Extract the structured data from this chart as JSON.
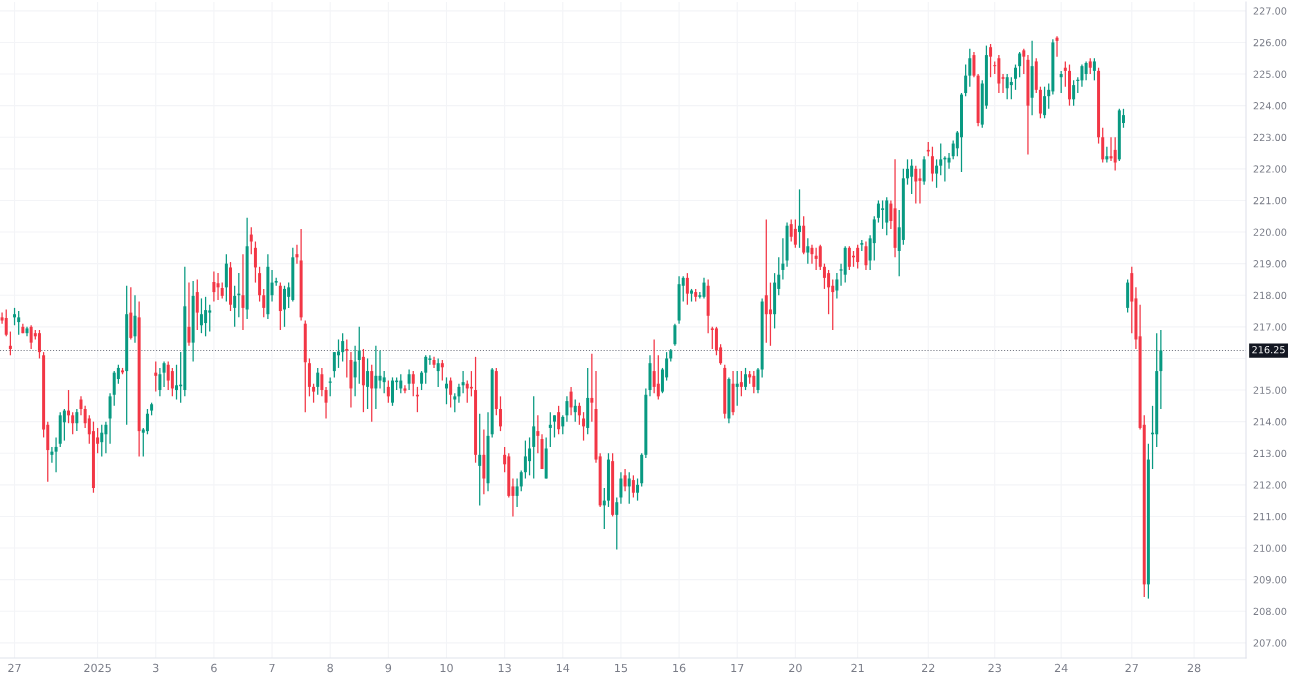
{
  "chart_data": {
    "type": "candlestick",
    "categories": [
      null,
      null,
      null,
      "27",
      null,
      null,
      null,
      null,
      null,
      null,
      null,
      null,
      null,
      null,
      null,
      null,
      null,
      null,
      null,
      null,
      null,
      null,
      null,
      "2025",
      null,
      null,
      null,
      null,
      null,
      null,
      null,
      null,
      null,
      null,
      null,
      null,
      null,
      "3",
      null,
      null,
      null,
      null,
      null,
      null,
      null,
      null,
      null,
      null,
      null,
      null,
      null,
      "6",
      null,
      null,
      null,
      null,
      null,
      null,
      null,
      null,
      null,
      null,
      null,
      null,
      null,
      "7",
      null,
      null,
      null,
      null,
      null,
      null,
      null,
      null,
      null,
      null,
      null,
      null,
      null,
      "8",
      null,
      null,
      null,
      null,
      null,
      null,
      null,
      null,
      null,
      null,
      null,
      null,
      null,
      "9",
      null,
      null,
      null,
      null,
      null,
      null,
      null,
      null,
      null,
      null,
      null,
      null,
      null,
      "10",
      null,
      null,
      null,
      null,
      null,
      null,
      null,
      null,
      null,
      null,
      null,
      null,
      null,
      "13",
      null,
      null,
      null,
      null,
      null,
      null,
      null,
      null,
      null,
      null,
      null,
      null,
      null,
      "14",
      null,
      null,
      null,
      null,
      null,
      null,
      null,
      null,
      null,
      null,
      null,
      null,
      null,
      "15",
      null,
      null,
      null,
      null,
      null,
      null,
      null,
      null,
      null,
      null,
      null,
      null,
      null,
      "16",
      null,
      null,
      null,
      null,
      null,
      null,
      null,
      null,
      null,
      null,
      null,
      null,
      null,
      "17",
      null,
      null,
      null,
      null,
      null,
      null,
      null,
      null,
      null,
      null,
      null,
      null,
      null,
      "20",
      null,
      null,
      null,
      null,
      null,
      null,
      null,
      null,
      null,
      null,
      null,
      null,
      null,
      null,
      "21",
      null,
      null,
      null,
      null,
      null,
      null,
      null,
      null,
      null,
      null,
      null,
      null,
      null,
      null,
      null,
      null,
      "22",
      null,
      null,
      null,
      null,
      null,
      null,
      null,
      null,
      null,
      null,
      null,
      null,
      null,
      null,
      null,
      "23",
      null,
      null,
      null,
      null,
      null,
      null,
      null,
      null,
      null,
      null,
      null,
      null,
      null,
      null,
      null,
      "24",
      null,
      null,
      null,
      null,
      null,
      null,
      null,
      null,
      null,
      null,
      null,
      null,
      null,
      null,
      null,
      null,
      "27",
      null,
      null,
      null,
      null,
      null,
      null,
      null,
      null,
      null,
      null,
      null,
      null,
      null,
      null,
      "28",
      null,
      null,
      null,
      null,
      null,
      null,
      null,
      null,
      null,
      null,
      null,
      null
    ],
    "ohlc": [
      [
        217.3,
        217.45,
        217.1,
        217.2
      ],
      [
        217.28,
        217.55,
        216.7,
        216.75
      ],
      [
        216.4,
        216.85,
        216.1,
        216.3
      ],
      [
        217.3,
        217.6,
        217.05,
        217.4
      ],
      [
        217.15,
        217.5,
        216.75,
        217.3
      ],
      [
        217.0,
        217.1,
        216.8,
        216.8
      ],
      [
        216.8,
        217.0,
        216.7,
        216.95
      ],
      [
        217.0,
        217.05,
        216.3,
        216.5
      ],
      [
        216.8,
        216.9,
        216.6,
        216.7
      ],
      [
        216.8,
        216.9,
        216.0,
        216.2
      ],
      [
        216.1,
        216.2,
        213.5,
        213.75
      ],
      [
        213.9,
        214.0,
        212.1,
        213.1
      ],
      [
        212.95,
        213.2,
        212.7,
        213.05
      ],
      [
        213.05,
        213.5,
        212.4,
        213.2
      ],
      [
        213.3,
        214.3,
        213.2,
        214.2
      ],
      [
        213.98,
        214.4,
        213.4,
        214.35
      ],
      [
        214.35,
        215.0,
        213.95,
        214.2
      ],
      [
        214.2,
        214.3,
        213.6,
        213.95
      ],
      [
        213.95,
        214.4,
        213.7,
        214.3
      ],
      [
        214.7,
        214.8,
        214.2,
        214.4
      ],
      [
        214.4,
        214.5,
        213.8,
        213.95
      ],
      [
        214.1,
        214.2,
        213.3,
        213.6
      ],
      [
        213.7,
        214.0,
        211.75,
        211.9
      ],
      [
        213.5,
        213.8,
        213.0,
        213.3
      ],
      [
        213.35,
        213.9,
        212.9,
        213.65
      ],
      [
        213.6,
        214.0,
        213.0,
        213.9
      ],
      [
        214.1,
        214.9,
        213.3,
        214.8
      ],
      [
        214.85,
        215.6,
        214.5,
        215.55
      ],
      [
        215.35,
        215.8,
        215.2,
        215.7
      ],
      [
        215.62,
        215.7,
        215.5,
        215.56
      ],
      [
        215.6,
        218.3,
        213.9,
        217.4
      ],
      [
        217.45,
        218.25,
        216.6,
        216.65
      ],
      [
        216.7,
        218.0,
        216.5,
        217.35
      ],
      [
        217.3,
        217.8,
        212.9,
        213.7
      ],
      [
        213.65,
        213.8,
        212.9,
        213.75
      ],
      [
        213.7,
        214.4,
        213.6,
        214.25
      ],
      [
        214.35,
        214.6,
        214.2,
        214.55
      ],
      [
        215.55,
        215.9,
        214.95,
        215.45
      ],
      [
        215.0,
        215.7,
        214.8,
        215.5
      ],
      [
        215.55,
        215.9,
        215.1,
        215.85
      ],
      [
        215.8,
        215.9,
        215.0,
        215.3
      ],
      [
        215.6,
        215.7,
        214.8,
        215.05
      ],
      [
        215.0,
        215.8,
        214.7,
        215.15
      ],
      [
        215.12,
        216.2,
        214.6,
        215.17
      ],
      [
        215.0,
        218.9,
        214.8,
        217.65
      ],
      [
        217.0,
        218.4,
        216.4,
        216.5
      ],
      [
        216.5,
        218.45,
        215.9,
        217.98
      ],
      [
        218.1,
        218.5,
        216.9,
        217.45
      ],
      [
        217.05,
        217.9,
        216.8,
        217.4
      ],
      [
        217.12,
        217.95,
        216.7,
        217.53
      ],
      [
        217.45,
        217.7,
        216.85,
        217.52
      ],
      [
        218.42,
        218.75,
        217.8,
        218.1
      ],
      [
        218.38,
        218.7,
        217.85,
        218.25
      ],
      [
        218.23,
        218.4,
        217.9,
        217.98
      ],
      [
        218.25,
        219.3,
        217.8,
        219.0
      ],
      [
        218.88,
        219.05,
        217.5,
        217.7
      ],
      [
        217.6,
        218.3,
        217.0,
        217.98
      ],
      [
        218.0,
        218.7,
        217.3,
        218.05
      ],
      [
        218.0,
        219.3,
        216.9,
        217.6
      ],
      [
        217.55,
        220.45,
        217.25,
        219.55
      ],
      [
        219.92,
        220.15,
        219.3,
        219.7
      ],
      [
        219.5,
        219.7,
        218.4,
        218.88
      ],
      [
        218.7,
        218.9,
        217.8,
        218.0
      ],
      [
        218.0,
        218.2,
        217.3,
        217.6
      ],
      [
        217.4,
        219.3,
        217.25,
        218.9
      ],
      [
        218.0,
        218.8,
        217.8,
        218.4
      ],
      [
        218.4,
        218.55,
        218.3,
        218.45
      ],
      [
        218.3,
        218.4,
        216.9,
        217.5
      ],
      [
        217.55,
        218.3,
        217.0,
        218.2
      ],
      [
        217.95,
        218.4,
        217.6,
        218.25
      ],
      [
        217.85,
        219.5,
        217.8,
        219.2
      ],
      [
        219.3,
        219.6,
        219.0,
        219.2
      ],
      [
        219.1,
        220.1,
        217.2,
        217.3
      ],
      [
        217.1,
        217.2,
        214.3,
        215.88
      ],
      [
        215.85,
        216.0,
        214.8,
        215.1
      ],
      [
        215.1,
        215.2,
        214.6,
        214.95
      ],
      [
        215.1,
        215.7,
        214.85,
        215.55
      ],
      [
        215.5,
        215.7,
        214.8,
        215.0
      ],
      [
        215.0,
        215.1,
        214.1,
        214.6
      ],
      [
        215.23,
        215.4,
        214.8,
        215.27
      ],
      [
        215.6,
        216.2,
        215.4,
        216.2
      ],
      [
        216.1,
        216.6,
        215.7,
        216.22
      ],
      [
        216.2,
        216.8,
        215.9,
        216.55
      ],
      [
        216.3,
        216.6,
        215.4,
        216.25
      ],
      [
        215.95,
        216.2,
        214.45,
        215.05
      ],
      [
        215.4,
        216.4,
        214.8,
        215.9
      ],
      [
        215.95,
        217.0,
        215.2,
        216.25
      ],
      [
        216.05,
        216.3,
        214.3,
        215.15
      ],
      [
        215.1,
        216.0,
        214.4,
        215.6
      ],
      [
        215.6,
        215.8,
        214.0,
        215.05
      ],
      [
        215.05,
        216.4,
        214.4,
        215.45
      ],
      [
        215.3,
        216.25,
        215.05,
        215.45
      ],
      [
        215.25,
        215.6,
        214.9,
        215.4
      ],
      [
        215.1,
        215.3,
        214.6,
        214.8
      ],
      [
        214.6,
        215.4,
        214.5,
        215.3
      ],
      [
        215.25,
        215.4,
        215.0,
        215.3
      ],
      [
        215.05,
        215.5,
        214.9,
        215.3
      ],
      [
        215.05,
        215.15,
        214.9,
        214.98
      ],
      [
        215.2,
        215.65,
        215.0,
        215.5
      ],
      [
        215.5,
        215.6,
        214.8,
        215.2
      ],
      [
        214.85,
        215.1,
        214.3,
        214.8
      ],
      [
        215.2,
        215.6,
        215.0,
        215.55
      ],
      [
        215.55,
        216.1,
        215.2,
        216.05
      ],
      [
        215.95,
        216.1,
        215.8,
        216.0
      ],
      [
        215.95,
        216.05,
        215.7,
        215.8
      ],
      [
        215.6,
        216.0,
        215.1,
        215.85
      ],
      [
        215.85,
        215.95,
        215.3,
        215.72
      ],
      [
        215.05,
        215.4,
        214.55,
        215.2
      ],
      [
        215.3,
        215.4,
        214.45,
        214.85
      ],
      [
        214.7,
        214.9,
        214.3,
        214.8
      ],
      [
        214.8,
        215.2,
        214.6,
        215.1
      ],
      [
        215.15,
        215.6,
        214.9,
        215.25
      ],
      [
        215.2,
        215.3,
        214.6,
        215.05
      ],
      [
        215.1,
        215.6,
        214.8,
        215.05
      ],
      [
        215.0,
        216.05,
        212.7,
        212.95
      ],
      [
        212.6,
        214.25,
        211.35,
        212.95
      ],
      [
        212.95,
        213.75,
        211.7,
        212.2
      ],
      [
        212.05,
        214.3,
        211.8,
        213.55
      ],
      [
        213.6,
        215.7,
        213.5,
        215.65
      ],
      [
        215.6,
        215.7,
        214.2,
        214.4
      ],
      [
        214.4,
        214.8,
        213.7,
        213.85
      ],
      [
        212.95,
        213.2,
        212.4,
        212.65
      ],
      [
        212.9,
        213.0,
        211.6,
        211.65
      ],
      [
        211.95,
        212.2,
        211.0,
        211.65
      ],
      [
        211.65,
        212.2,
        211.3,
        211.95
      ],
      [
        211.95,
        212.45,
        211.8,
        212.4
      ],
      [
        212.4,
        213.4,
        212.2,
        212.9
      ],
      [
        212.75,
        213.5,
        212.3,
        213.15
      ],
      [
        213.2,
        214.8,
        212.2,
        213.85
      ],
      [
        213.7,
        214.2,
        213.0,
        213.55
      ],
      [
        213.45,
        213.6,
        212.5,
        212.5
      ],
      [
        212.2,
        213.5,
        212.2,
        213.15
      ],
      [
        213.8,
        214.3,
        213.2,
        213.9
      ],
      [
        214.0,
        214.2,
        213.5,
        214.2
      ],
      [
        214.3,
        214.5,
        213.6,
        213.76
      ],
      [
        213.85,
        214.2,
        213.6,
        214.15
      ],
      [
        214.2,
        214.8,
        214.0,
        214.65
      ],
      [
        214.95,
        215.1,
        214.2,
        214.45
      ],
      [
        214.3,
        214.7,
        214.0,
        214.5
      ],
      [
        214.5,
        214.6,
        213.9,
        214.2
      ],
      [
        214.1,
        214.3,
        213.4,
        213.85
      ],
      [
        213.8,
        215.7,
        213.6,
        214.75
      ],
      [
        214.75,
        216.15,
        214.0,
        214.6
      ],
      [
        214.4,
        215.6,
        212.7,
        212.8
      ],
      [
        212.9,
        213.0,
        211.3,
        211.35
      ],
      [
        211.35,
        211.9,
        210.6,
        211.5
      ],
      [
        211.5,
        213.0,
        211.3,
        212.8
      ],
      [
        212.75,
        213.0,
        211.0,
        211.05
      ],
      [
        211.05,
        211.6,
        209.95,
        211.45
      ],
      [
        211.6,
        212.4,
        211.4,
        212.2
      ],
      [
        212.3,
        212.5,
        211.8,
        211.95
      ],
      [
        211.95,
        212.4,
        211.4,
        212.2
      ],
      [
        212.15,
        212.3,
        211.6,
        211.75
      ],
      [
        211.75,
        212.2,
        211.5,
        212.0
      ],
      [
        212.05,
        213.0,
        211.95,
        212.95
      ],
      [
        212.95,
        215.05,
        212.85,
        214.85
      ],
      [
        215.0,
        216.1,
        214.8,
        215.85
      ],
      [
        215.6,
        216.6,
        214.9,
        215.1
      ],
      [
        215.2,
        216.1,
        214.7,
        214.8
      ],
      [
        214.95,
        215.7,
        214.9,
        215.65
      ],
      [
        215.4,
        216.2,
        215.3,
        216.0
      ],
      [
        216.0,
        216.3,
        215.9,
        216.25
      ],
      [
        216.45,
        217.1,
        216.4,
        217.05
      ],
      [
        217.2,
        218.6,
        217.1,
        218.35
      ],
      [
        218.3,
        218.6,
        217.8,
        218.55
      ],
      [
        218.55,
        218.7,
        217.7,
        218.05
      ],
      [
        218.05,
        218.2,
        217.8,
        218.15
      ],
      [
        218.1,
        218.2,
        217.8,
        217.95
      ],
      [
        217.95,
        218.1,
        217.9,
        218.0
      ],
      [
        217.95,
        218.55,
        217.9,
        218.4
      ],
      [
        218.3,
        218.5,
        216.8,
        217.35
      ],
      [
        216.95,
        217.0,
        216.3,
        216.9
      ],
      [
        216.95,
        217.0,
        216.1,
        216.25
      ],
      [
        216.35,
        216.45,
        215.8,
        215.85
      ],
      [
        215.7,
        215.8,
        214.1,
        214.25
      ],
      [
        214.1,
        215.4,
        213.95,
        215.35
      ],
      [
        215.2,
        215.6,
        214.2,
        214.3
      ],
      [
        215.1,
        215.6,
        214.5,
        215.2
      ],
      [
        215.25,
        215.6,
        214.8,
        215.1
      ],
      [
        215.1,
        215.7,
        215.0,
        215.5
      ],
      [
        215.5,
        215.6,
        215.2,
        215.4
      ],
      [
        215.45,
        215.6,
        214.9,
        215.1
      ],
      [
        215.0,
        215.7,
        214.9,
        215.65
      ],
      [
        215.65,
        217.9,
        215.4,
        217.8
      ],
      [
        218.0,
        220.4,
        216.5,
        217.4
      ],
      [
        217.55,
        218.4,
        216.4,
        217.4
      ],
      [
        217.4,
        218.7,
        216.95,
        218.4
      ],
      [
        218.2,
        219.2,
        218.0,
        218.65
      ],
      [
        218.8,
        219.8,
        218.5,
        219.0
      ],
      [
        219.1,
        220.3,
        218.9,
        220.2
      ],
      [
        220.25,
        220.4,
        219.7,
        219.85
      ],
      [
        220.1,
        220.4,
        219.5,
        219.6
      ],
      [
        220.0,
        221.35,
        219.5,
        220.2
      ],
      [
        220.2,
        220.5,
        219.3,
        219.35
      ],
      [
        219.35,
        219.8,
        219.0,
        219.55
      ],
      [
        219.5,
        219.6,
        219.0,
        219.3
      ],
      [
        219.25,
        219.5,
        218.8,
        219.15
      ],
      [
        219.55,
        219.6,
        218.8,
        218.9
      ],
      [
        218.9,
        219.0,
        218.2,
        218.55
      ],
      [
        218.7,
        218.8,
        217.4,
        218.25
      ],
      [
        218.3,
        218.5,
        216.9,
        218.1
      ],
      [
        218.15,
        218.7,
        217.9,
        218.5
      ],
      [
        218.78,
        219.0,
        218.3,
        218.82
      ],
      [
        218.65,
        219.55,
        218.4,
        219.5
      ],
      [
        219.5,
        219.55,
        218.8,
        218.9
      ],
      [
        219.25,
        219.4,
        218.9,
        219.2
      ],
      [
        219.5,
        219.6,
        218.85,
        219.05
      ],
      [
        219.6,
        219.75,
        219.4,
        219.65
      ],
      [
        219.55,
        219.7,
        218.8,
        218.95
      ],
      [
        219.1,
        219.9,
        218.8,
        219.8
      ],
      [
        219.65,
        220.5,
        219.1,
        220.4
      ],
      [
        220.45,
        221.0,
        220.3,
        220.9
      ],
      [
        220.7,
        221.0,
        220.1,
        220.75
      ],
      [
        220.3,
        221.1,
        219.9,
        221.0
      ],
      [
        220.9,
        221.0,
        220.1,
        220.35
      ],
      [
        220.75,
        222.3,
        219.2,
        219.5
      ],
      [
        219.4,
        220.7,
        218.6,
        220.15
      ],
      [
        219.75,
        222.0,
        219.6,
        221.7
      ],
      [
        221.7,
        222.3,
        221.5,
        222.0
      ],
      [
        221.75,
        222.3,
        221.2,
        222.1
      ],
      [
        222.0,
        222.1,
        220.9,
        221.6
      ],
      [
        221.7,
        222.0,
        220.9,
        221.62
      ],
      [
        221.6,
        222.4,
        221.5,
        222.3
      ],
      [
        222.6,
        222.85,
        222.4,
        222.55
      ],
      [
        222.4,
        222.7,
        221.6,
        221.85
      ],
      [
        221.85,
        222.3,
        221.4,
        222.1
      ],
      [
        222.1,
        222.8,
        221.8,
        222.3
      ],
      [
        222.3,
        222.4,
        221.6,
        222.35
      ],
      [
        222.2,
        222.5,
        222.0,
        222.35
      ],
      [
        222.4,
        222.9,
        222.3,
        222.8
      ],
      [
        222.65,
        223.2,
        222.4,
        223.15
      ],
      [
        223.0,
        224.4,
        221.9,
        224.35
      ],
      [
        224.4,
        225.3,
        224.3,
        224.95
      ],
      [
        224.95,
        225.8,
        224.6,
        225.5
      ],
      [
        225.6,
        225.7,
        224.9,
        224.95
      ],
      [
        224.95,
        225.0,
        223.35,
        223.45
      ],
      [
        223.4,
        224.8,
        223.3,
        224.7
      ],
      [
        224.0,
        225.9,
        223.9,
        225.6
      ],
      [
        225.85,
        225.95,
        224.9,
        225.55
      ],
      [
        225.28,
        225.4,
        225.0,
        225.25
      ],
      [
        225.5,
        225.6,
        224.4,
        224.7
      ],
      [
        224.9,
        225.0,
        224.4,
        224.85
      ],
      [
        224.55,
        225.0,
        224.2,
        224.9
      ],
      [
        224.65,
        224.9,
        224.2,
        224.75
      ],
      [
        224.85,
        225.3,
        224.5,
        225.2
      ],
      [
        225.25,
        225.7,
        224.9,
        225.65
      ],
      [
        225.75,
        225.8,
        225.0,
        225.55
      ],
      [
        225.45,
        225.6,
        222.45,
        224.0
      ],
      [
        224.25,
        226.05,
        223.7,
        225.25
      ],
      [
        225.4,
        225.5,
        224.4,
        224.5
      ],
      [
        224.5,
        224.6,
        223.6,
        223.75
      ],
      [
        223.7,
        224.6,
        223.6,
        224.3
      ],
      [
        224.3,
        224.7,
        223.9,
        224.5
      ],
      [
        224.45,
        226.1,
        224.35,
        226.0
      ],
      [
        226.15,
        226.2,
        225.55,
        226.05
      ],
      [
        224.9,
        225.1,
        224.4,
        225.0
      ],
      [
        225.2,
        225.4,
        224.6,
        225.1
      ],
      [
        225.1,
        225.3,
        224.0,
        224.2
      ],
      [
        224.2,
        224.8,
        224.0,
        224.65
      ],
      [
        224.78,
        224.9,
        224.4,
        224.82
      ],
      [
        224.8,
        225.3,
        224.6,
        225.25
      ],
      [
        225.0,
        225.4,
        224.8,
        225.35
      ],
      [
        225.4,
        225.5,
        225.0,
        225.2
      ],
      [
        225.1,
        225.5,
        224.8,
        225.4
      ],
      [
        225.1,
        225.2,
        222.8,
        223.0
      ],
      [
        223.0,
        223.3,
        222.2,
        222.3
      ],
      [
        222.3,
        222.7,
        222.2,
        222.4
      ],
      [
        222.4,
        223.0,
        222.25,
        222.33
      ],
      [
        222.6,
        223.0,
        221.95,
        222.2
      ],
      [
        222.3,
        223.9,
        222.25,
        223.85
      ],
      [
        223.45,
        223.9,
        223.3,
        223.7
      ],
      [
        217.6,
        218.5,
        217.45,
        218.4
      ],
      [
        218.7,
        218.9,
        216.8,
        217.8
      ],
      [
        217.9,
        218.25,
        216.3,
        216.6
      ],
      [
        216.7,
        217.7,
        213.75,
        213.8
      ],
      [
        213.9,
        214.2,
        208.45,
        208.85
      ],
      [
        208.85,
        213.3,
        208.4,
        212.8
      ],
      [
        213.6,
        214.5,
        212.5,
        213.65
      ],
      [
        213.6,
        216.8,
        213.2,
        215.6
      ],
      [
        215.6,
        216.9,
        214.4,
        216.25
      ],
      null,
      null,
      null,
      null,
      null,
      null,
      null,
      null,
      null,
      null,
      null,
      null,
      null,
      null,
      null,
      null,
      null,
      null,
      null,
      null
    ],
    "colors": [
      "#f23645",
      "#f23645",
      "#f23645",
      "#089981",
      "#089981",
      "#f23645",
      "#089981",
      "#f23645",
      "#f23645",
      "#f23645",
      "#f23645",
      "#f23645",
      "#089981",
      "#089981",
      "#089981",
      "#089981",
      "#f23645",
      "#f23645",
      "#089981",
      "#f23645",
      "#f23645",
      "#f23645",
      "#f23645",
      "#f23645",
      "#089981",
      "#089981",
      "#089981",
      "#089981",
      "#089981",
      "#f23645",
      "#089981",
      "#f23645",
      "#089981",
      "#f23645",
      "#089981",
      "#089981",
      "#089981",
      "#f23645",
      "#089981",
      "#089981",
      "#f23645",
      "#f23645",
      "#089981",
      "#089981",
      "#089981",
      "#f23645",
      "#089981",
      "#f23645",
      "#089981",
      "#089981",
      "#089981",
      "#f23645",
      "#f23645",
      "#f23645",
      "#089981",
      "#f23645",
      "#089981",
      "#089981",
      "#f23645",
      "#089981",
      "#f23645",
      "#f23645",
      "#f23645",
      "#f23645",
      "#089981",
      "#089981",
      "#089981",
      "#f23645",
      "#089981",
      "#089981",
      "#089981",
      "#f23645",
      "#f23645",
      "#f23645",
      "#f23645",
      "#f23645",
      "#089981",
      "#f23645",
      "#f23645",
      "#089981",
      "#089981",
      "#089981",
      "#089981",
      "#f23645",
      "#f23645",
      "#089981",
      "#089981",
      "#f23645",
      "#089981",
      "#f23645",
      "#089981",
      "#089981",
      "#089981",
      "#f23645",
      "#089981",
      "#089981",
      "#089981",
      "#f23645",
      "#089981",
      "#f23645",
      "#f23645",
      "#089981",
      "#089981",
      "#089981",
      "#f23645",
      "#089981",
      "#f23645",
      "#089981",
      "#f23645",
      "#089981",
      "#089981",
      "#089981",
      "#f23645",
      "#f23645",
      "#f23645",
      "#089981",
      "#f23645",
      "#089981",
      "#089981",
      "#f23645",
      "#f23645",
      "#f23645",
      "#f23645",
      "#f23645",
      "#089981",
      "#089981",
      "#089981",
      "#089981",
      "#089981",
      "#f23645",
      "#f23645",
      "#089981",
      "#089981",
      "#089981",
      "#f23645",
      "#089981",
      "#089981",
      "#f23645",
      "#089981",
      "#f23645",
      "#f23645",
      "#089981",
      "#f23645",
      "#f23645",
      "#f23645",
      "#089981",
      "#089981",
      "#f23645",
      "#089981",
      "#089981",
      "#f23645",
      "#089981",
      "#f23645",
      "#089981",
      "#089981",
      "#089981",
      "#089981",
      "#f23645",
      "#f23645",
      "#089981",
      "#089981",
      "#089981",
      "#089981",
      "#089981",
      "#089981",
      "#f23645",
      "#089981",
      "#f23645",
      "#089981",
      "#089981",
      "#f23645",
      "#f23645",
      "#f23645",
      "#f23645",
      "#f23645",
      "#089981",
      "#f23645",
      "#089981",
      "#f23645",
      "#089981",
      "#f23645",
      "#f23645",
      "#089981",
      "#089981",
      "#f23645",
      "#f23645",
      "#089981",
      "#089981",
      "#089981",
      "#089981",
      "#f23645",
      "#f23645",
      "#089981",
      "#f23645",
      "#089981",
      "#f23645",
      "#f23645",
      "#f23645",
      "#f23645",
      "#f23645",
      "#f23645",
      "#089981",
      "#089981",
      "#089981",
      "#f23645",
      "#f23645",
      "#f23645",
      "#089981",
      "#f23645",
      "#089981",
      "#089981",
      "#089981",
      "#089981",
      "#089981",
      "#f23645",
      "#f23645",
      "#089981",
      "#089981",
      "#089981",
      "#089981",
      "#f23645",
      "#f23645",
      "#089981",
      "#f23645",
      "#f23645",
      "#089981",
      "#089981",
      "#089981",
      "#089981",
      "#089981",
      "#089981",
      "#089981",
      "#089981",
      "#089981",
      "#f23645",
      "#f23645",
      "#089981",
      "#089981",
      "#f23645",
      "#f23645",
      "#f23645",
      "#f23645",
      "#089981",
      "#089981",
      "#089981",
      "#089981",
      "#f23645",
      "#f23645",
      "#089981",
      "#f23645",
      "#f23645",
      "#089981",
      "#089981",
      "#089981",
      "#f23645",
      "#089981",
      "#f23645",
      "#f23645",
      "#089981",
      "#089981",
      "#089981",
      "#089981",
      "#f23645",
      "#089981",
      "#f23645",
      "#f23645",
      "#089981",
      "#f23645",
      "#f23645",
      "#089981",
      "#089981",
      "#089981",
      "#f23645",
      "#f23645",
      "#f23645",
      "#f23645",
      "#089981",
      "#089981",
      "#089981",
      "#089981",
      null,
      null,
      null,
      null,
      null,
      null,
      null,
      null,
      null,
      null,
      null,
      null,
      null,
      null,
      null,
      null,
      null,
      null,
      null,
      null
    ],
    "ylim": [
      206.52,
      227.28
    ],
    "yticks": [
      {
        "value": 207,
        "label": "207.00"
      },
      {
        "value": 208,
        "label": "208.00"
      },
      {
        "value": 209,
        "label": "209.00"
      },
      {
        "value": 210,
        "label": "210.00"
      },
      {
        "value": 211,
        "label": "211.00"
      },
      {
        "value": 212,
        "label": "212.00"
      },
      {
        "value": 213,
        "label": "213.00"
      },
      {
        "value": 214,
        "label": "214.00"
      },
      {
        "value": 215,
        "label": "215.00"
      },
      {
        "value": 216,
        "label": null
      },
      {
        "value": 217,
        "label": "217.00"
      },
      {
        "value": 218,
        "label": "218.00"
      },
      {
        "value": 219,
        "label": "219.00"
      },
      {
        "value": 220,
        "label": "220.00"
      },
      {
        "value": 221,
        "label": "221.00"
      },
      {
        "value": 222,
        "label": "222.00"
      },
      {
        "value": 223,
        "label": "223.00"
      },
      {
        "value": 224,
        "label": "224.00"
      },
      {
        "value": 225,
        "label": "225.00"
      },
      {
        "value": 226,
        "label": "226.00"
      },
      {
        "value": 227,
        "label": "227.00"
      }
    ],
    "grid": true,
    "ref_lines": [
      {
        "axis": "y",
        "value": 216.25,
        "label": "216.25",
        "line_style": "dotted",
        "color": "#787b86"
      }
    ]
  }
}
